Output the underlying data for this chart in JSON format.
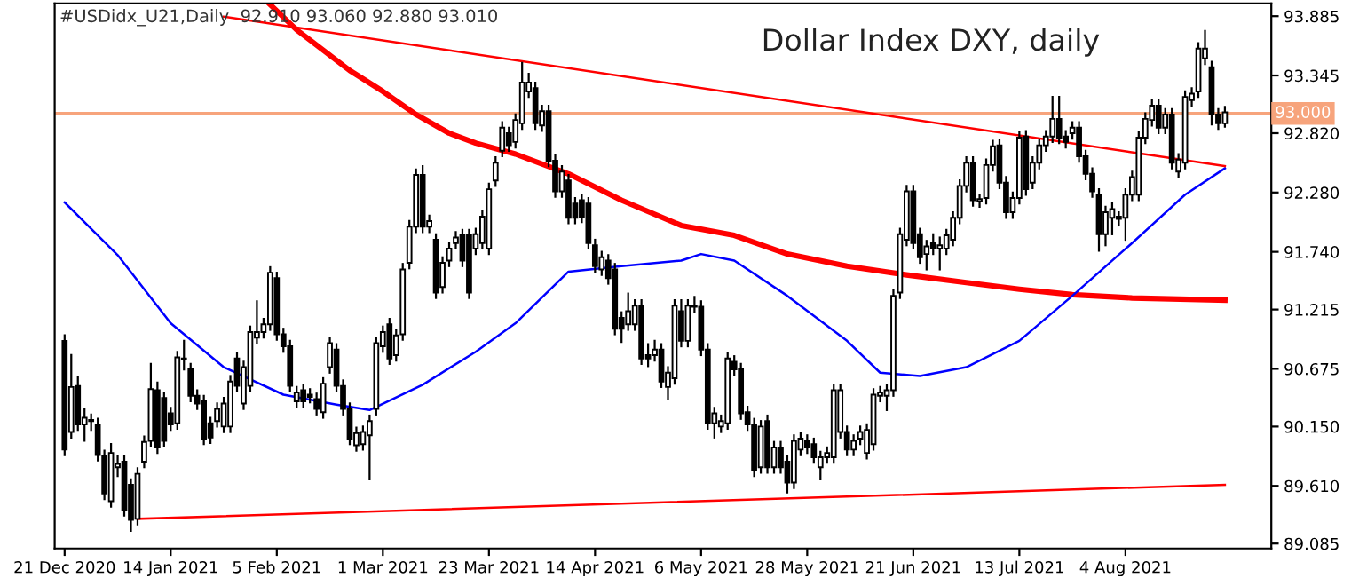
{
  "chart_data": {
    "type": "candlestick",
    "title": "Dollar Index DXY, daily",
    "annotations": [
      "#USDidx_U21,Daily  92.910 93.060 92.880 93.010"
    ],
    "categories": [
      "21 Dec 2020",
      null,
      null,
      null,
      null,
      null,
      null,
      null,
      null,
      null,
      null,
      null,
      null,
      null,
      null,
      null,
      "14 Jan 2021",
      null,
      null,
      null,
      null,
      null,
      null,
      null,
      null,
      null,
      null,
      null,
      null,
      null,
      null,
      null,
      "5 Feb 2021",
      null,
      null,
      null,
      null,
      null,
      null,
      null,
      null,
      null,
      null,
      null,
      null,
      null,
      null,
      null,
      "1 Mar 2021",
      null,
      null,
      null,
      null,
      null,
      null,
      null,
      null,
      null,
      null,
      null,
      null,
      null,
      null,
      null,
      "23 Mar 2021",
      null,
      null,
      null,
      null,
      null,
      null,
      null,
      null,
      null,
      null,
      null,
      null,
      null,
      null,
      null,
      "14 Apr 2021",
      null,
      null,
      null,
      null,
      null,
      null,
      null,
      null,
      null,
      null,
      null,
      null,
      null,
      null,
      null,
      "6 May 2021",
      null,
      null,
      null,
      null,
      null,
      null,
      null,
      null,
      null,
      null,
      null,
      null,
      null,
      null,
      null,
      "28 May 2021",
      null,
      null,
      null,
      null,
      null,
      null,
      null,
      null,
      null,
      null,
      null,
      null,
      null,
      null,
      null,
      "21 Jun 2021",
      null,
      null,
      null,
      null,
      null,
      null,
      null,
      null,
      null,
      null,
      null,
      null,
      null,
      null,
      null,
      "13 Jul 2021",
      null,
      null,
      null,
      null,
      null,
      null,
      null,
      null,
      null,
      null,
      null,
      null,
      null,
      null,
      null,
      "4 Aug 2021",
      null,
      null,
      null,
      null,
      null,
      null,
      null,
      null,
      null,
      null,
      null,
      null,
      null,
      null,
      null
    ],
    "color": "#000000",
    "ohlc": [
      [
        90.93,
        90.98,
        89.89,
        89.94
      ],
      [
        90.1,
        90.8,
        90.05,
        90.51
      ],
      [
        90.52,
        90.6,
        90.12,
        90.17
      ],
      [
        90.17,
        90.31,
        90.02,
        90.23
      ],
      [
        90.21,
        90.26,
        90.12,
        90.2
      ],
      [
        90.17,
        90.22,
        89.84,
        89.89
      ],
      [
        89.88,
        89.93,
        89.49,
        89.54
      ],
      [
        89.47,
        89.99,
        89.42,
        89.91
      ],
      [
        89.78,
        89.88,
        89.7,
        89.81
      ],
      [
        89.83,
        89.88,
        89.34,
        89.39
      ],
      [
        89.62,
        89.67,
        89.2,
        89.3
      ],
      [
        89.31,
        89.77,
        89.26,
        89.72
      ],
      [
        89.83,
        90.06,
        89.78,
        90.01
      ],
      [
        90.02,
        90.72,
        89.97,
        90.49
      ],
      [
        90.48,
        90.55,
        89.91,
        89.96
      ],
      [
        90.41,
        90.46,
        89.97,
        90.02
      ],
      [
        90.27,
        90.32,
        90.12,
        90.17
      ],
      [
        90.18,
        90.83,
        90.13,
        90.78
      ],
      [
        90.76,
        90.93,
        90.67,
        90.77
      ],
      [
        90.67,
        90.72,
        90.38,
        90.43
      ],
      [
        90.43,
        90.48,
        90.31,
        90.36
      ],
      [
        90.38,
        90.43,
        89.99,
        90.04
      ],
      [
        90.18,
        90.23,
        90.0,
        90.05
      ],
      [
        90.2,
        90.36,
        90.15,
        90.31
      ],
      [
        90.15,
        90.41,
        90.1,
        90.36
      ],
      [
        90.15,
        90.61,
        90.1,
        90.56
      ],
      [
        90.77,
        90.82,
        90.47,
        90.52
      ],
      [
        90.36,
        90.74,
        90.31,
        90.69
      ],
      [
        90.52,
        91.06,
        90.47,
        91.01
      ],
      [
        90.96,
        91.29,
        90.91,
        91.01
      ],
      [
        91.01,
        91.13,
        90.96,
        91.08
      ],
      [
        91.08,
        91.6,
        91.03,
        91.55
      ],
      [
        91.5,
        91.55,
        90.94,
        90.99
      ],
      [
        90.99,
        91.04,
        90.83,
        90.88
      ],
      [
        90.88,
        90.93,
        90.47,
        90.52
      ],
      [
        90.38,
        90.51,
        90.33,
        90.46
      ],
      [
        90.48,
        90.53,
        90.33,
        90.38
      ],
      [
        90.44,
        90.49,
        90.37,
        90.42
      ],
      [
        90.4,
        90.45,
        90.26,
        90.31
      ],
      [
        90.28,
        90.59,
        90.23,
        90.54
      ],
      [
        90.69,
        90.96,
        90.64,
        90.91
      ],
      [
        90.85,
        90.9,
        90.47,
        90.52
      ],
      [
        90.52,
        90.57,
        90.26,
        90.31
      ],
      [
        90.31,
        90.36,
        89.99,
        90.04
      ],
      [
        89.98,
        90.14,
        89.93,
        90.09
      ],
      [
        89.99,
        90.15,
        89.94,
        90.1
      ],
      [
        90.07,
        90.25,
        89.67,
        90.2
      ],
      [
        90.31,
        90.96,
        90.26,
        90.91
      ],
      [
        90.88,
        91.06,
        90.83,
        91.01
      ],
      [
        91.08,
        91.13,
        90.72,
        90.77
      ],
      [
        90.8,
        91.03,
        90.75,
        90.98
      ],
      [
        90.99,
        91.63,
        90.94,
        91.58
      ],
      [
        91.64,
        92.02,
        91.59,
        91.97
      ],
      [
        91.97,
        92.49,
        91.92,
        92.44
      ],
      [
        92.44,
        92.52,
        91.92,
        91.97
      ],
      [
        91.97,
        92.07,
        91.92,
        92.02
      ],
      [
        91.85,
        91.9,
        91.32,
        91.37
      ],
      [
        91.42,
        91.69,
        91.37,
        91.64
      ],
      [
        91.66,
        91.82,
        91.61,
        91.77
      ],
      [
        91.82,
        91.92,
        91.77,
        91.87
      ],
      [
        91.89,
        91.94,
        91.61,
        91.66
      ],
      [
        91.89,
        91.94,
        91.32,
        91.37
      ],
      [
        91.77,
        91.95,
        91.72,
        91.9
      ],
      [
        91.82,
        92.11,
        91.77,
        92.06
      ],
      [
        91.77,
        92.36,
        91.72,
        92.31
      ],
      [
        92.39,
        92.6,
        92.34,
        92.55
      ],
      [
        92.66,
        92.92,
        92.61,
        92.87
      ],
      [
        92.82,
        92.87,
        92.66,
        92.71
      ],
      [
        92.74,
        92.99,
        92.69,
        92.94
      ],
      [
        92.91,
        93.46,
        92.86,
        93.28
      ],
      [
        93.2,
        93.36,
        93.15,
        93.28
      ],
      [
        93.23,
        93.28,
        92.86,
        92.91
      ],
      [
        92.89,
        93.07,
        92.84,
        93.02
      ],
      [
        93.02,
        93.07,
        92.52,
        92.57
      ],
      [
        92.57,
        92.62,
        92.24,
        92.29
      ],
      [
        92.29,
        92.52,
        92.24,
        92.47
      ],
      [
        92.39,
        92.44,
        92.0,
        92.05
      ],
      [
        92.18,
        92.23,
        92.0,
        92.05
      ],
      [
        92.21,
        92.26,
        92.01,
        92.06
      ],
      [
        92.18,
        92.23,
        91.77,
        91.82
      ],
      [
        91.8,
        91.85,
        91.56,
        91.61
      ],
      [
        91.58,
        91.74,
        91.53,
        91.69
      ],
      [
        91.66,
        91.71,
        91.45,
        91.5
      ],
      [
        91.58,
        91.63,
        90.99,
        91.04
      ],
      [
        91.14,
        91.19,
        90.92,
        91.04
      ],
      [
        91.08,
        91.36,
        91.03,
        91.2
      ],
      [
        91.08,
        91.3,
        91.03,
        91.25
      ],
      [
        91.25,
        91.3,
        90.72,
        90.77
      ],
      [
        90.8,
        90.9,
        90.7,
        90.77
      ],
      [
        90.8,
        90.93,
        90.75,
        90.85
      ],
      [
        90.85,
        90.9,
        90.51,
        90.56
      ],
      [
        90.51,
        90.69,
        90.4,
        90.64
      ],
      [
        90.59,
        91.3,
        90.54,
        91.25
      ],
      [
        91.2,
        91.3,
        90.88,
        90.93
      ],
      [
        90.93,
        91.3,
        90.88,
        91.25
      ],
      [
        91.24,
        91.33,
        91.19,
        91.25
      ],
      [
        91.24,
        91.29,
        90.8,
        90.85
      ],
      [
        90.85,
        90.9,
        90.13,
        90.18
      ],
      [
        90.18,
        90.32,
        90.05,
        90.27
      ],
      [
        90.15,
        90.25,
        90.1,
        90.2
      ],
      [
        90.18,
        90.82,
        90.13,
        90.77
      ],
      [
        90.74,
        90.79,
        90.62,
        90.67
      ],
      [
        90.67,
        90.72,
        90.22,
        90.27
      ],
      [
        90.28,
        90.33,
        90.12,
        90.17
      ],
      [
        90.17,
        90.22,
        89.7,
        89.75
      ],
      [
        89.78,
        90.2,
        89.73,
        90.15
      ],
      [
        90.2,
        90.25,
        89.73,
        89.78
      ],
      [
        89.78,
        90.01,
        89.73,
        89.96
      ],
      [
        89.96,
        90.01,
        89.73,
        89.78
      ],
      [
        89.83,
        89.88,
        89.55,
        89.64
      ],
      [
        89.64,
        90.07,
        89.59,
        90.02
      ],
      [
        89.94,
        90.09,
        89.89,
        90.04
      ],
      [
        90.02,
        90.07,
        89.91,
        89.96
      ],
      [
        89.99,
        90.04,
        89.82,
        89.87
      ],
      [
        89.78,
        89.92,
        89.67,
        89.87
      ],
      [
        89.87,
        89.96,
        89.82,
        89.91
      ],
      [
        89.87,
        90.53,
        89.82,
        90.48
      ],
      [
        90.1,
        90.53,
        90.05,
        90.48
      ],
      [
        90.1,
        90.15,
        89.89,
        89.94
      ],
      [
        89.94,
        90.07,
        89.89,
        90.02
      ],
      [
        90.04,
        90.15,
        89.99,
        90.1
      ],
      [
        89.91,
        90.17,
        89.86,
        90.12
      ],
      [
        89.99,
        90.49,
        89.94,
        90.44
      ],
      [
        90.43,
        90.51,
        90.38,
        90.46
      ],
      [
        90.43,
        90.53,
        90.3,
        90.48
      ],
      [
        90.48,
        91.39,
        90.43,
        91.34
      ],
      [
        91.37,
        91.95,
        91.32,
        91.9
      ],
      [
        91.85,
        92.34,
        91.8,
        92.29
      ],
      [
        92.29,
        92.34,
        91.77,
        91.82
      ],
      [
        91.9,
        91.95,
        91.64,
        91.69
      ],
      [
        91.72,
        91.84,
        91.58,
        91.79
      ],
      [
        91.82,
        91.9,
        91.72,
        91.77
      ],
      [
        91.77,
        91.87,
        91.58,
        91.8
      ],
      [
        91.77,
        91.94,
        91.72,
        91.89
      ],
      [
        91.85,
        92.1,
        91.8,
        92.05
      ],
      [
        92.05,
        92.39,
        92.0,
        92.34
      ],
      [
        92.34,
        92.6,
        92.29,
        92.55
      ],
      [
        92.55,
        92.6,
        92.16,
        92.21
      ],
      [
        92.2,
        92.26,
        92.15,
        92.22
      ],
      [
        92.23,
        92.58,
        92.18,
        92.53
      ],
      [
        92.53,
        92.75,
        92.48,
        92.7
      ],
      [
        92.71,
        92.76,
        92.32,
        92.37
      ],
      [
        92.37,
        92.42,
        92.05,
        92.1
      ],
      [
        92.1,
        92.28,
        92.05,
        92.23
      ],
      [
        92.23,
        92.83,
        92.18,
        92.78
      ],
      [
        92.79,
        92.84,
        92.26,
        92.31
      ],
      [
        92.37,
        92.6,
        92.32,
        92.55
      ],
      [
        92.55,
        92.76,
        92.5,
        92.71
      ],
      [
        92.71,
        92.84,
        92.66,
        92.79
      ],
      [
        92.79,
        93.15,
        92.74,
        92.95
      ],
      [
        92.95,
        93.15,
        92.73,
        92.78
      ],
      [
        92.79,
        92.84,
        92.69,
        92.74
      ],
      [
        92.82,
        92.92,
        92.77,
        92.87
      ],
      [
        92.87,
        92.92,
        92.56,
        92.61
      ],
      [
        92.61,
        92.66,
        92.4,
        92.45
      ],
      [
        92.45,
        92.5,
        92.24,
        92.29
      ],
      [
        92.26,
        92.31,
        91.75,
        91.9
      ],
      [
        91.9,
        92.15,
        91.8,
        92.1
      ],
      [
        92.05,
        92.18,
        91.9,
        92.13
      ],
      [
        92.04,
        92.1,
        91.98,
        92.06
      ],
      [
        92.05,
        92.31,
        91.85,
        92.26
      ],
      [
        92.26,
        92.47,
        92.21,
        92.42
      ],
      [
        92.26,
        92.83,
        92.21,
        92.78
      ],
      [
        92.78,
        93.0,
        92.73,
        92.95
      ],
      [
        92.94,
        93.12,
        92.89,
        93.07
      ],
      [
        93.07,
        93.12,
        92.82,
        92.87
      ],
      [
        92.87,
        93.04,
        92.82,
        92.99
      ],
      [
        92.99,
        93.04,
        92.5,
        92.55
      ],
      [
        92.47,
        92.63,
        92.42,
        92.58
      ],
      [
        92.55,
        93.2,
        92.5,
        93.15
      ],
      [
        93.12,
        93.23,
        93.07,
        93.18
      ],
      [
        93.2,
        93.64,
        93.15,
        93.59
      ],
      [
        93.5,
        93.75,
        93.45,
        93.59
      ],
      [
        93.42,
        93.47,
        92.9,
        92.99
      ],
      [
        92.99,
        93.04,
        92.86,
        92.91
      ],
      [
        92.91,
        93.06,
        92.88,
        93.01
      ]
    ],
    "series": [
      {
        "type": "line",
        "color": "#ff0000",
        "values": [
          null,
          null,
          null,
          null,
          null,
          null,
          null,
          null,
          null,
          null,
          null,
          null,
          null,
          null,
          null,
          null,
          null,
          null,
          null,
          null,
          null,
          null,
          null,
          null,
          null,
          null,
          null,
          null,
          null,
          null,
          null,
          93.99,
          null,
          null,
          null,
          93.76,
          null,
          null,
          null,
          null,
          null,
          null,
          null,
          93.39,
          null,
          null,
          null,
          null,
          93.2,
          null,
          null,
          null,
          null,
          92.99,
          null,
          null,
          null,
          null,
          92.82,
          null,
          null,
          null,
          92.73,
          null,
          null,
          null,
          null,
          null,
          92.63,
          null,
          null,
          null,
          null,
          null,
          null,
          null,
          92.45,
          null,
          null,
          null,
          null,
          null,
          null,
          null,
          92.21,
          null,
          null,
          null,
          null,
          null,
          null,
          null,
          null,
          91.98,
          null,
          null,
          null,
          null,
          null,
          null,
          null,
          91.89,
          null,
          null,
          null,
          null,
          null,
          null,
          null,
          91.72,
          null,
          null,
          null,
          null,
          null,
          null,
          null,
          null,
          91.61,
          null,
          null,
          null,
          null,
          null,
          null,
          null,
          null,
          91.53,
          null,
          null,
          null,
          null,
          null,
          null,
          null,
          null,
          91.46,
          null,
          null,
          null,
          null,
          null,
          null,
          null,
          91.4,
          null,
          null,
          null,
          null,
          null,
          null,
          null,
          91.35,
          null,
          null,
          null,
          null,
          null,
          null,
          null,
          null,
          91.32,
          null,
          null,
          null,
          null,
          null,
          null,
          null,
          null,
          null,
          null,
          null,
          null,
          null,
          91.3
        ]
      },
      {
        "type": "line",
        "color": "#0000ff",
        "values": [
          92.19,
          null,
          null,
          null,
          null,
          null,
          null,
          null,
          91.71,
          null,
          null,
          null,
          null,
          null,
          null,
          null,
          91.09,
          null,
          null,
          null,
          null,
          null,
          null,
          null,
          90.69,
          null,
          null,
          null,
          null,
          null,
          null,
          null,
          null,
          90.44,
          null,
          null,
          null,
          null,
          null,
          null,
          null,
          90.35,
          null,
          null,
          null,
          null,
          90.3,
          null,
          null,
          null,
          null,
          null,
          null,
          null,
          90.53,
          null,
          null,
          null,
          null,
          null,
          null,
          null,
          90.83,
          null,
          null,
          null,
          null,
          null,
          91.09,
          null,
          null,
          null,
          null,
          null,
          null,
          null,
          91.56,
          null,
          null,
          null,
          null,
          null,
          null,
          null,
          91.61,
          null,
          null,
          null,
          null,
          null,
          null,
          null,
          null,
          91.66,
          null,
          null,
          91.72,
          null,
          null,
          null,
          null,
          91.66,
          null,
          null,
          null,
          null,
          null,
          null,
          null,
          91.34,
          null,
          null,
          null,
          null,
          null,
          null,
          null,
          null,
          90.93,
          null,
          null,
          null,
          null,
          90.64,
          null,
          null,
          null,
          null,
          null,
          90.61,
          null,
          null,
          null,
          null,
          null,
          null,
          90.69,
          null,
          null,
          null,
          null,
          null,
          null,
          null,
          90.93,
          null,
          null,
          null,
          null,
          null,
          null,
          null,
          91.34,
          null,
          null,
          null,
          null,
          null,
          null,
          null,
          null,
          91.82,
          null,
          null,
          null,
          null,
          null,
          null,
          null,
          92.26,
          null,
          null,
          null,
          null,
          null,
          92.5
        ]
      },
      {
        "type": "line",
        "color": "#ff0000",
        "values": [
          null,
          null,
          null,
          null,
          null,
          null,
          null,
          null,
          null,
          null,
          null,
          null,
          null,
          null,
          null,
          null,
          null,
          null,
          null,
          null,
          null,
          null,
          null,
          null,
          93.88,
          null,
          null,
          null,
          null,
          null,
          null,
          null,
          null,
          null,
          null,
          null,
          null,
          null,
          null,
          null,
          null,
          null,
          null,
          null,
          null,
          null,
          null,
          null,
          null,
          null,
          null,
          null,
          null,
          null,
          null,
          null,
          null,
          null,
          null,
          null,
          null,
          null,
          null,
          null,
          null,
          null,
          null,
          null,
          null,
          null,
          null,
          null,
          null,
          null,
          null,
          null,
          null,
          null,
          null,
          null,
          null,
          null,
          null,
          null,
          null,
          null,
          null,
          null,
          null,
          null,
          null,
          null,
          null,
          null,
          null,
          null,
          null,
          null,
          null,
          null,
          null,
          null,
          null,
          null,
          null,
          null,
          null,
          null,
          null,
          null,
          null,
          null,
          null,
          null,
          null,
          null,
          null,
          null,
          null,
          null,
          null,
          null,
          null,
          null,
          null,
          null,
          null,
          null,
          null,
          null,
          null,
          null,
          null,
          null,
          null,
          null,
          null,
          null,
          null,
          null,
          null,
          null,
          null,
          null,
          null,
          null,
          null,
          null,
          null,
          null,
          null,
          null,
          null,
          null,
          null,
          null,
          null,
          null,
          null,
          null,
          null,
          null,
          null,
          null,
          null,
          null,
          null,
          null,
          null,
          null,
          null,
          null,
          null,
          null,
          null,
          92.52
        ]
      },
      {
        "type": "line",
        "color": "#ff0000",
        "values": [
          null,
          null,
          null,
          null,
          null,
          null,
          null,
          null,
          null,
          null,
          null,
          89.31,
          null,
          null,
          null,
          null,
          null,
          null,
          null,
          null,
          null,
          null,
          null,
          null,
          null,
          null,
          null,
          null,
          null,
          null,
          null,
          null,
          null,
          null,
          null,
          null,
          null,
          null,
          null,
          null,
          null,
          null,
          null,
          null,
          null,
          null,
          null,
          null,
          null,
          null,
          null,
          null,
          null,
          null,
          null,
          null,
          null,
          null,
          null,
          null,
          null,
          null,
          null,
          null,
          null,
          null,
          null,
          null,
          null,
          null,
          null,
          null,
          null,
          null,
          null,
          null,
          null,
          null,
          null,
          null,
          null,
          null,
          null,
          null,
          null,
          null,
          null,
          null,
          null,
          null,
          null,
          null,
          null,
          null,
          null,
          null,
          null,
          null,
          null,
          null,
          null,
          null,
          null,
          null,
          null,
          null,
          null,
          null,
          null,
          null,
          null,
          null,
          null,
          null,
          null,
          null,
          null,
          null,
          null,
          null,
          null,
          null,
          null,
          null,
          null,
          null,
          null,
          null,
          null,
          null,
          null,
          null,
          null,
          null,
          null,
          null,
          null,
          null,
          null,
          null,
          null,
          null,
          null,
          null,
          null,
          null,
          null,
          null,
          null,
          null,
          null,
          null,
          null,
          null,
          null,
          null,
          null,
          null,
          null,
          null,
          null,
          null,
          null,
          null,
          null,
          null,
          null,
          null,
          null,
          null,
          null,
          null,
          null,
          null,
          null,
          89.62
        ]
      }
    ],
    "ref_lines": [
      {
        "axis": "y",
        "value": 93.0,
        "label": "93.000",
        "color": "#f7a47c"
      }
    ],
    "ylim": [
      89.04,
      94.0
    ],
    "yticks": [
      93.885,
      93.345,
      {
        "value": 92.82,
        "label": "92.820"
      },
      {
        "value": 92.28,
        "label": "92.280"
      },
      {
        "value": 91.74,
        "label": "91.740"
      },
      91.215,
      90.675,
      {
        "value": 90.15,
        "label": "90.150"
      },
      {
        "value": 89.61,
        "label": "89.610"
      },
      89.085
    ],
    "grid": false,
    "legend": false
  }
}
